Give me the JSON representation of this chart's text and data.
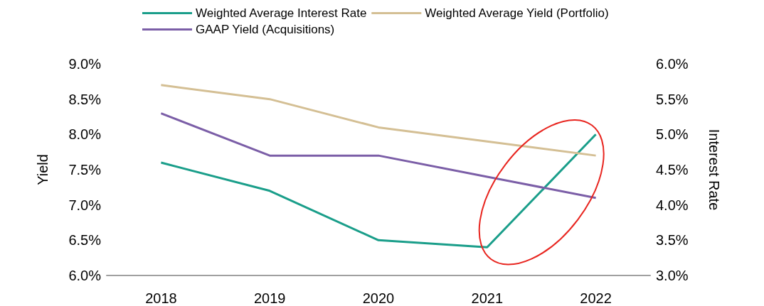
{
  "chart_data": {
    "type": "line",
    "categories": [
      "2018",
      "2019",
      "2020",
      "2021",
      "2022"
    ],
    "ylabel": "Yield",
    "y2label": "Interest Rate",
    "series": [
      {
        "name": "Weighted Average Interest Rate",
        "color": "#1a9e8a",
        "axis": "y2",
        "values": [
          4.6,
          4.2,
          3.5,
          3.4,
          5.0
        ]
      },
      {
        "name": "Weighted Average Yield (Portfolio)",
        "color": "#d4bf94",
        "values": [
          8.7,
          8.5,
          8.1,
          7.9,
          7.7
        ]
      },
      {
        "name": "GAAP Yield (Acquisitions)",
        "color": "#7b5ea7",
        "values": [
          8.3,
          7.7,
          7.7,
          7.4,
          7.1
        ]
      }
    ],
    "ylim": [
      6.0,
      9.0
    ],
    "yticks": [
      {
        "value": 6.0,
        "label": "6.0%"
      },
      {
        "value": 6.5,
        "label": "6.5%"
      },
      {
        "value": 7.0,
        "label": "7.0%"
      },
      {
        "value": 7.5,
        "label": "7.5%"
      },
      {
        "value": 8.0,
        "label": "8.0%"
      },
      {
        "value": 8.5,
        "label": "8.5%"
      },
      {
        "value": 9.0,
        "label": "9.0%"
      }
    ],
    "y2lim": [
      3.0,
      6.0
    ],
    "y2ticks": [
      {
        "value": 3.0,
        "label": "3.0%"
      },
      {
        "value": 3.5,
        "label": "3.5%"
      },
      {
        "value": 4.0,
        "label": "4.0%"
      },
      {
        "value": 4.5,
        "label": "4.5%"
      },
      {
        "value": 5.0,
        "label": "5.0%"
      },
      {
        "value": 5.5,
        "label": "5.5%"
      },
      {
        "value": 6.0,
        "label": "6.0%"
      }
    ],
    "grid": false,
    "legend": "top",
    "marker": "none",
    "line_style": "solid"
  }
}
